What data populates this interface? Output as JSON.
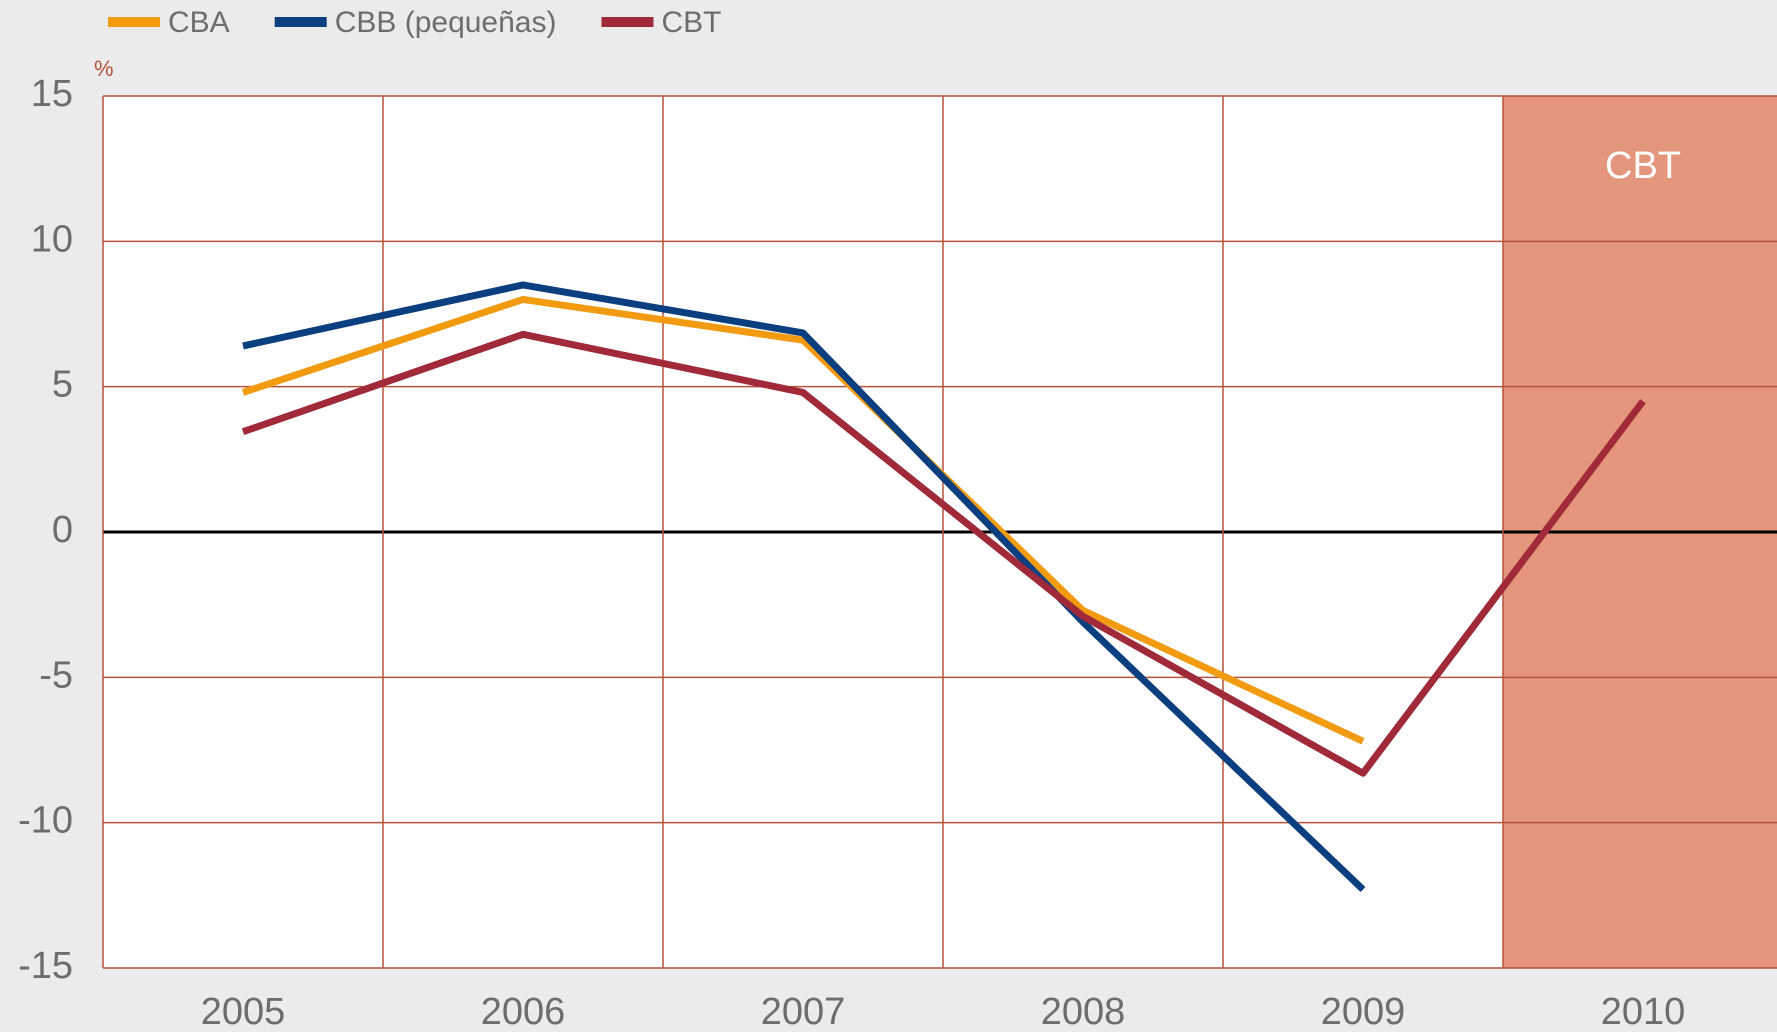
{
  "chart_data": {
    "type": "line",
    "y_unit": "%",
    "categories": [
      "2005",
      "2006",
      "2007",
      "2008",
      "2009",
      "2010"
    ],
    "series": [
      {
        "name": "CBA",
        "color": "#f29a10",
        "values": [
          4.8,
          8.0,
          6.6,
          -2.7,
          -7.2,
          null
        ]
      },
      {
        "name": "CBB (pequeñas)",
        "color": "#0b3f7f",
        "values": [
          6.4,
          8.5,
          6.85,
          -3.1,
          -12.3,
          null
        ]
      },
      {
        "name": "CBT",
        "color": "#a02a3a",
        "values": [
          3.45,
          6.8,
          4.8,
          -2.9,
          -8.3,
          4.5
        ]
      }
    ],
    "shaded_region": {
      "category": "2010",
      "label": "CBT",
      "color": "#e4967c"
    },
    "ylim": [
      -15,
      15
    ],
    "yticks": [
      -15,
      -10,
      -5,
      0,
      5,
      10,
      15
    ],
    "grid": true,
    "grid_color": "#b5523b"
  }
}
